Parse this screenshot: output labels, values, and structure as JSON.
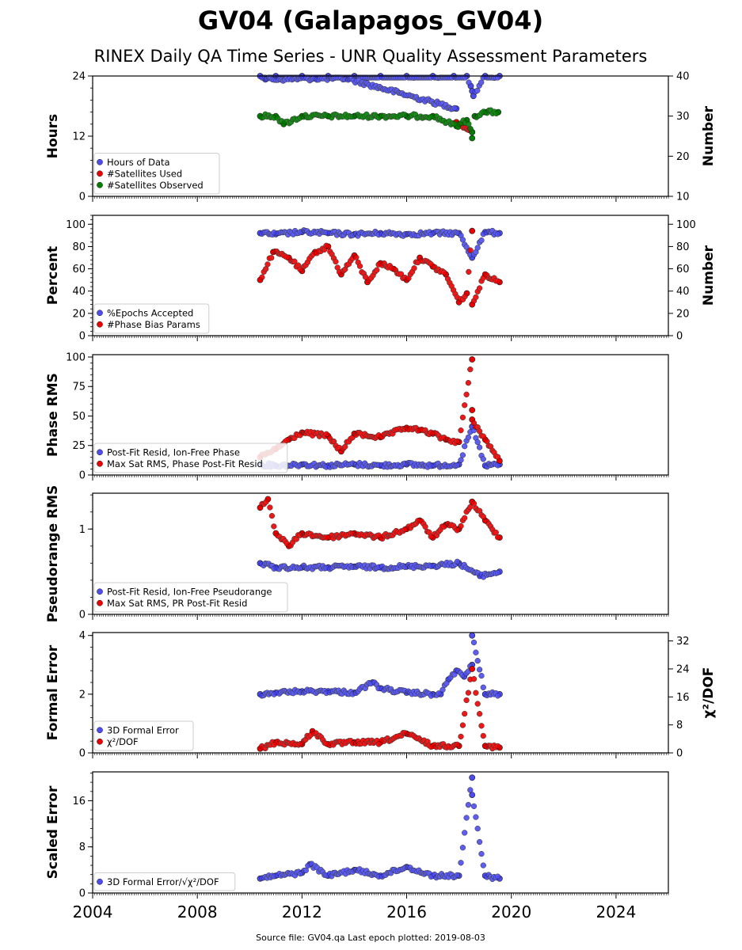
{
  "title": "GV04 (Galapagos_GV04)",
  "subtitle": "RINEX Daily QA Time Series - UNR Quality Assessment Parameters",
  "footer": "Source file: GV04.qa Last epoch plotted: 2019-08-03",
  "colors": {
    "blue": "#4c4cef",
    "red": "#ee0000",
    "green": "#007f00",
    "edge": "#1a1a1a"
  },
  "chart_data": [
    {
      "type": "scatter",
      "ylabel": "Hours",
      "y2label": "Number",
      "xlim": [
        2004,
        2026
      ],
      "ylim": [
        0,
        24
      ],
      "y2lim": [
        10,
        40
      ],
      "yticks": [
        0,
        12,
        24
      ],
      "y2ticks": [
        10,
        20,
        30,
        40
      ],
      "legend_position": "lower-left",
      "series": [
        {
          "name": "Hours of Data",
          "color": "blue",
          "axis": "left",
          "x": [
            2010.4,
            2011.0,
            2012.0,
            2013.0,
            2014.0,
            2015.0,
            2016.0,
            2017.0,
            2017.8,
            2018.3,
            2018.45,
            2018.5,
            2018.55,
            2019.0,
            2019.55,
            2010.6,
            2012.5,
            2013.7,
            2017.9
          ],
          "y": [
            24,
            24,
            24,
            24,
            24,
            24,
            24,
            24,
            24,
            24,
            22,
            21,
            20,
            24,
            24,
            23.3,
            23.5,
            23.5,
            17.5
          ]
        },
        {
          "name": "#Satellites Used",
          "color": "red",
          "axis": "right",
          "x": [
            2017.9,
            2018.5
          ],
          "y": [
            28.5,
            26
          ]
        },
        {
          "name": "#Satellites Observed",
          "color": "green",
          "axis": "right",
          "x": [
            2010.4,
            2011.0,
            2011.3,
            2012.0,
            2013.0,
            2014.0,
            2015.0,
            2016.0,
            2017.0,
            2017.9,
            2018.3,
            2018.5,
            2018.5,
            2018.6,
            2019.0,
            2019.5
          ],
          "y": [
            30,
            30,
            28,
            30,
            30,
            30,
            30,
            30,
            30,
            27.5,
            29,
            26,
            24.5,
            30,
            31,
            31
          ]
        }
      ]
    },
    {
      "type": "scatter",
      "ylabel": "Percent",
      "y2label": "Number",
      "xlim": [
        2004,
        2026
      ],
      "ylim": [
        0,
        108
      ],
      "y2lim": [
        0,
        108
      ],
      "yticks": [
        0,
        20,
        40,
        60,
        80,
        100
      ],
      "y2ticks": [
        0,
        20,
        40,
        60,
        80,
        100
      ],
      "legend_position": "lower-left",
      "series": [
        {
          "name": "%Epochs Accepted",
          "color": "blue",
          "axis": "left",
          "x": [
            2010.4,
            2011.0,
            2012.0,
            2013.0,
            2014.0,
            2015.0,
            2016.0,
            2017.0,
            2018.0,
            2018.5,
            2019.0,
            2019.55
          ],
          "y": [
            92,
            91,
            93,
            92,
            91,
            92,
            91,
            92,
            92,
            70,
            93,
            92
          ]
        },
        {
          "name": "#Phase Bias Params",
          "color": "red",
          "axis": "right",
          "x": [
            2010.4,
            2010.9,
            2011.5,
            2012.0,
            2012.5,
            2013.0,
            2013.5,
            2014.0,
            2014.5,
            2015.0,
            2015.5,
            2016.0,
            2016.5,
            2017.0,
            2017.5,
            2018.0,
            2018.3,
            2018.5,
            2018.5,
            2019.0,
            2019.55
          ],
          "y": [
            50,
            75,
            70,
            58,
            75,
            80,
            55,
            72,
            48,
            65,
            60,
            50,
            70,
            62,
            55,
            30,
            38,
            94,
            28,
            55,
            48
          ]
        }
      ]
    },
    {
      "type": "scatter",
      "ylabel": "Phase RMS",
      "xlim": [
        2004,
        2026
      ],
      "ylim": [
        0,
        102
      ],
      "yticks": [
        0,
        25,
        50,
        75,
        100
      ],
      "legend_position": "lower-left",
      "series": [
        {
          "name": "Post-Fit Resid, Ion-Free Phase",
          "color": "blue",
          "axis": "left",
          "x": [
            2010.4,
            2011.0,
            2012.0,
            2013.0,
            2014.0,
            2015.0,
            2016.0,
            2017.0,
            2018.0,
            2018.5,
            2019.0,
            2019.55
          ],
          "y": [
            9,
            8,
            9,
            8,
            9,
            8,
            9,
            8,
            9,
            41,
            8,
            9
          ]
        },
        {
          "name": "Max Sat RMS, Phase Post-Fit Resid",
          "color": "red",
          "axis": "left",
          "x": [
            2010.4,
            2011.0,
            2011.5,
            2012.0,
            2013.0,
            2013.5,
            2014.0,
            2015.0,
            2016.0,
            2016.5,
            2017.0,
            2017.5,
            2018.0,
            2018.5,
            2018.5,
            2018.5,
            2019.0,
            2019.55
          ],
          "y": [
            15,
            22,
            30,
            36,
            33,
            20,
            35,
            32,
            40,
            38,
            35,
            30,
            28,
            98,
            55,
            47,
            30,
            12
          ]
        }
      ]
    },
    {
      "type": "scatter",
      "ylabel": "Pseudorange RMS",
      "xlim": [
        2004,
        2026
      ],
      "ylim": [
        0,
        1.42
      ],
      "yticks": [
        0,
        1
      ],
      "legend_position": "lower-left",
      "series": [
        {
          "name": "Post-Fit Resid, Ion-Free Pseudorange",
          "color": "blue",
          "axis": "left",
          "x": [
            2010.4,
            2011.0,
            2012.0,
            2013.0,
            2014.0,
            2015.0,
            2016.0,
            2017.0,
            2018.0,
            2018.8,
            2019.55
          ],
          "y": [
            0.6,
            0.55,
            0.55,
            0.55,
            0.56,
            0.55,
            0.56,
            0.57,
            0.6,
            0.45,
            0.5
          ]
        },
        {
          "name": "Max Sat RMS, PR Post-Fit Resid",
          "color": "red",
          "axis": "left",
          "x": [
            2010.4,
            2010.7,
            2011.0,
            2011.5,
            2012.0,
            2013.0,
            2014.0,
            2015.0,
            2016.0,
            2016.5,
            2017.0,
            2017.5,
            2018.0,
            2018.5,
            2019.0,
            2019.55
          ],
          "y": [
            1.25,
            1.35,
            0.95,
            0.8,
            0.95,
            0.9,
            0.95,
            0.9,
            1.0,
            1.1,
            0.9,
            1.05,
            1.0,
            1.32,
            1.1,
            0.9
          ]
        }
      ]
    },
    {
      "type": "scatter",
      "ylabel": "Formal Error",
      "y2label": "χ²/DOF",
      "xlim": [
        2004,
        2026
      ],
      "ylim": [
        0,
        4.1
      ],
      "y2lim": [
        0,
        34.4
      ],
      "yticks": [
        0,
        2,
        4
      ],
      "y2ticks": [
        0,
        8,
        16,
        24,
        32
      ],
      "legend_position": "lower-left",
      "series": [
        {
          "name": "3D Formal Error",
          "color": "blue",
          "axis": "left",
          "x": [
            2010.4,
            2011.0,
            2012.0,
            2013.0,
            2014.0,
            2014.7,
            2015.0,
            2016.0,
            2017.0,
            2017.3,
            2017.6,
            2017.9,
            2018.2,
            2018.5,
            2018.5,
            2019.0,
            2019.55
          ],
          "y": [
            2.0,
            2.05,
            2.1,
            2.1,
            2.05,
            2.4,
            2.2,
            2.05,
            2.0,
            2.0,
            2.5,
            2.8,
            2.6,
            3.0,
            4.0,
            2.0,
            2.0
          ]
        },
        {
          "name": "χ²/DOF",
          "color": "red",
          "axis": "right",
          "x": [
            2010.4,
            2011.0,
            2012.0,
            2012.4,
            2013.0,
            2014.0,
            2015.0,
            2016.0,
            2017.0,
            2018.0,
            2018.5,
            2019.0,
            2019.55
          ],
          "y": [
            1.2,
            3,
            2.5,
            6.2,
            2.5,
            3,
            3,
            5.5,
            2,
            2,
            24,
            2,
            1.5
          ]
        }
      ]
    },
    {
      "type": "scatter",
      "ylabel": "Scaled Error",
      "xlim": [
        2004,
        2026
      ],
      "ylim": [
        0,
        21
      ],
      "yticks": [
        0,
        8,
        16
      ],
      "xticks": [
        2004,
        2008,
        2012,
        2016,
        2020,
        2024
      ],
      "legend_position": "lower-left",
      "series": [
        {
          "name": "3D Formal Error/√χ²/DOF",
          "color": "blue",
          "axis": "left",
          "x": [
            2010.4,
            2011.0,
            2012.0,
            2012.3,
            2013.0,
            2014.0,
            2015.0,
            2016.0,
            2017.0,
            2018.0,
            2018.5,
            2018.5,
            2019.0,
            2019.55
          ],
          "y": [
            2.5,
            3,
            3.5,
            5,
            3,
            4,
            3,
            4.5,
            3,
            3,
            20,
            17,
            3,
            2.5
          ]
        }
      ]
    }
  ]
}
